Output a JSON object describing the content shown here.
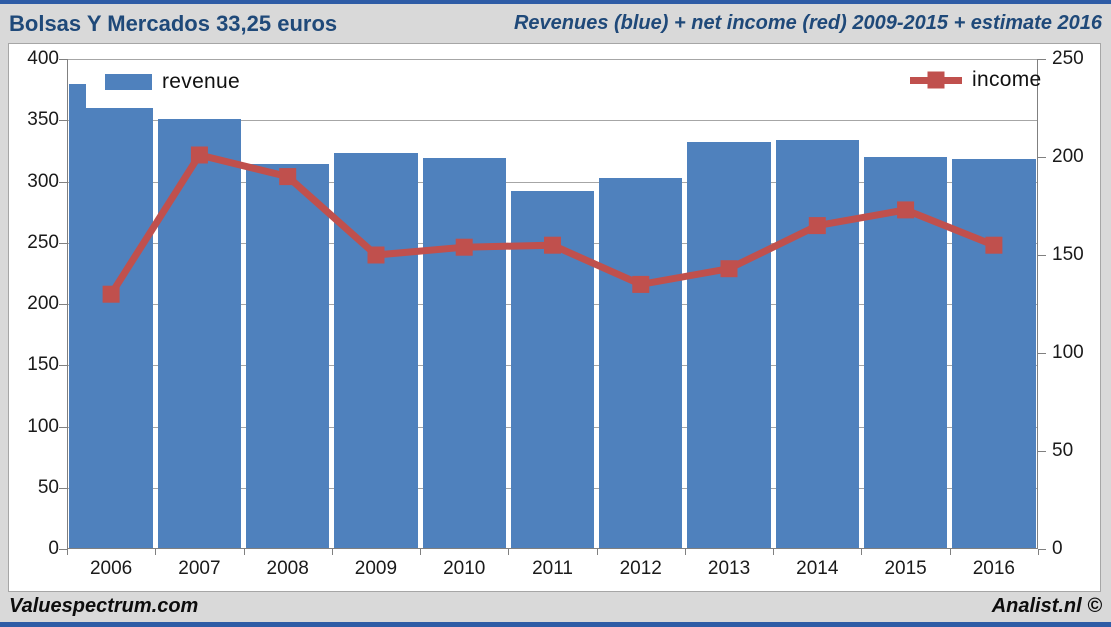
{
  "header": {
    "title_left": "Bolsas Y Mercados 33,25 euros",
    "title_right": "Revenues (blue) + net income (red) 2009-2015 + estimate 2016"
  },
  "footer": {
    "left": "Valuespectrum.com",
    "right": "Analist.nl ©"
  },
  "colors": {
    "bar_blue": "#4F81BD",
    "line_red": "#C0504D",
    "title_blue": "#1F4979",
    "page_bg": "#D9D9D9",
    "plot_bg": "#FFFFFF",
    "gridline_gray": "#A6A6A6",
    "axis_gray": "#808080",
    "edge_strip_blue": "#2E5CA6"
  },
  "chart_data": {
    "type": "combo",
    "categories": [
      "2006",
      "2007",
      "2008",
      "2009",
      "2010",
      "2011",
      "2012",
      "2013",
      "2014",
      "2015",
      "2016"
    ],
    "series": [
      {
        "name": "revenue",
        "type": "bar",
        "axis": "left",
        "values": [
          360,
          351,
          314,
          323,
          319,
          292,
          303,
          332,
          334,
          320,
          318
        ]
      },
      {
        "name": "revenue-secondary-step",
        "type": "bar-back",
        "axis": "left",
        "values": [
          380,
          null,
          null,
          null,
          null,
          null,
          null,
          null,
          null,
          null,
          null
        ]
      },
      {
        "name": "income",
        "type": "line",
        "axis": "right",
        "values": [
          130,
          201,
          190,
          150,
          154,
          155,
          135,
          143,
          165,
          173,
          155
        ]
      }
    ],
    "left_axis": {
      "min": 0,
      "max": 400,
      "step": 50,
      "ticks": [
        "400",
        "350",
        "300",
        "250",
        "200",
        "150",
        "100",
        "50",
        "0"
      ]
    },
    "right_axis": {
      "min": 0,
      "max": 250,
      "step": 50,
      "ticks": [
        "250",
        "200",
        "150",
        "100",
        "50",
        "0"
      ]
    },
    "legend": [
      {
        "label": "revenue",
        "position": "top-left"
      },
      {
        "label": "income",
        "position": "top-right"
      }
    ],
    "grid": true
  }
}
